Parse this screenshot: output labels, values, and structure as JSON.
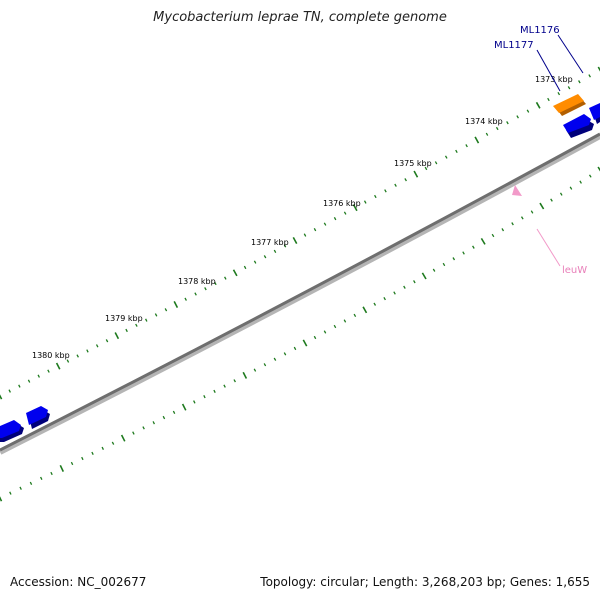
{
  "title": "Mycobacterium leprae TN, complete genome",
  "footer": {
    "accession_label": "Accession:",
    "accession": "NC_002677",
    "topology_label": "Topology:",
    "topology": "circular",
    "length_label": "Length:",
    "length": "3,268,203 bp",
    "genes_label": "Genes:",
    "genes": "1,655"
  },
  "colors": {
    "backbone": "#7a7a7a",
    "tick": "#1e7a1e",
    "gene_forward": "#0000ee",
    "gene_highlight": "#ff8c00",
    "trna": "#f29ac9",
    "gene_label": "#00008b",
    "trna_label": "#e87fb9"
  },
  "scale_labels": [
    "1373 kbp",
    "1374 kbp",
    "1375 kbp",
    "1376 kbp",
    "1377 kbp",
    "1378 kbp",
    "1379 kbp",
    "1380 kbp"
  ],
  "gene_labels": [
    "ML1176",
    "ML1177"
  ],
  "trna_labels": [
    "leuW"
  ]
}
